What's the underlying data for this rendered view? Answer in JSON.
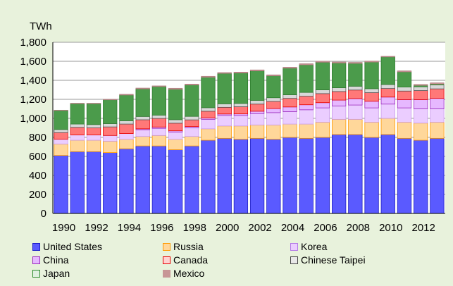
{
  "chart_data": {
    "type": "bar",
    "stacked": true,
    "unit_label": "TWh",
    "title": "",
    "xlabel": "",
    "ylabel": "",
    "ylim": [
      0,
      1800
    ],
    "yticks": [
      0,
      200,
      400,
      600,
      800,
      1000,
      1200,
      1400,
      1600,
      1800
    ],
    "ytick_labels": [
      "0",
      "200",
      "400",
      "600",
      "800",
      "1,000",
      "1,200",
      "1,400",
      "1,600",
      "1,800"
    ],
    "categories": [
      1990,
      1991,
      1992,
      1993,
      1994,
      1995,
      1996,
      1997,
      1998,
      1999,
      2000,
      2001,
      2002,
      2003,
      2004,
      2005,
      2006,
      2007,
      2008,
      2009,
      2010,
      2011,
      2012,
      2013
    ],
    "xtick_labels": [
      "1990",
      "1992",
      "1994",
      "1996",
      "1998",
      "2000",
      "2002",
      "2004",
      "2006",
      "2008",
      "2010",
      "2012"
    ],
    "grid": true,
    "legend_position": "bottom",
    "series": [
      {
        "name": "United States",
        "color": "#5a5aff",
        "values": [
          610,
          650,
          650,
          640,
          680,
          710,
          710,
          670,
          710,
          770,
          790,
          780,
          790,
          780,
          800,
          790,
          800,
          830,
          830,
          800,
          830,
          790,
          770,
          790
        ]
      },
      {
        "name": "Russia",
        "color": "#ffd79a",
        "values": [
          120,
          120,
          120,
          120,
          100,
          100,
          110,
          110,
          100,
          120,
          130,
          140,
          140,
          150,
          140,
          150,
          160,
          160,
          160,
          160,
          170,
          170,
          180,
          170
        ]
      },
      {
        "name": "Korea",
        "color": "#ebcdff",
        "values": [
          50,
          55,
          55,
          60,
          60,
          70,
          75,
          75,
          90,
          100,
          110,
          110,
          120,
          130,
          130,
          150,
          150,
          140,
          150,
          150,
          150,
          150,
          150,
          140
        ]
      },
      {
        "name": "China",
        "color": "#e6b8ff",
        "values": [
          0,
          0,
          0,
          0,
          0,
          10,
          14,
          14,
          14,
          15,
          16,
          17,
          25,
          43,
          50,
          53,
          55,
          62,
          68,
          70,
          74,
          87,
          97,
          110
        ]
      },
      {
        "name": "Canada",
        "color": "#ff7878",
        "values": [
          70,
          80,
          75,
          90,
          100,
          95,
          90,
          80,
          70,
          70,
          70,
          75,
          75,
          75,
          90,
          90,
          95,
          90,
          90,
          90,
          90,
          90,
          95,
          100
        ]
      },
      {
        "name": "Chinese Taipei",
        "color": "#d8d8d8",
        "values": [
          33,
          35,
          35,
          35,
          35,
          35,
          35,
          37,
          37,
          37,
          37,
          35,
          39,
          39,
          38,
          40,
          40,
          40,
          40,
          42,
          42,
          42,
          40,
          41
        ]
      },
      {
        "name": "Japan",
        "color": "#4b9b4b",
        "values": [
          200,
          215,
          220,
          250,
          270,
          290,
          300,
          320,
          330,
          320,
          320,
          320,
          310,
          230,
          280,
          290,
          290,
          260,
          240,
          280,
          290,
          160,
          15,
          10
        ]
      },
      {
        "name": "Mexico",
        "color": "#c89696",
        "values": [
          3,
          4,
          4,
          5,
          8,
          8,
          7,
          10,
          9,
          10,
          8,
          9,
          10,
          10,
          9,
          11,
          11,
          10,
          10,
          10,
          6,
          10,
          9,
          12
        ]
      }
    ]
  }
}
